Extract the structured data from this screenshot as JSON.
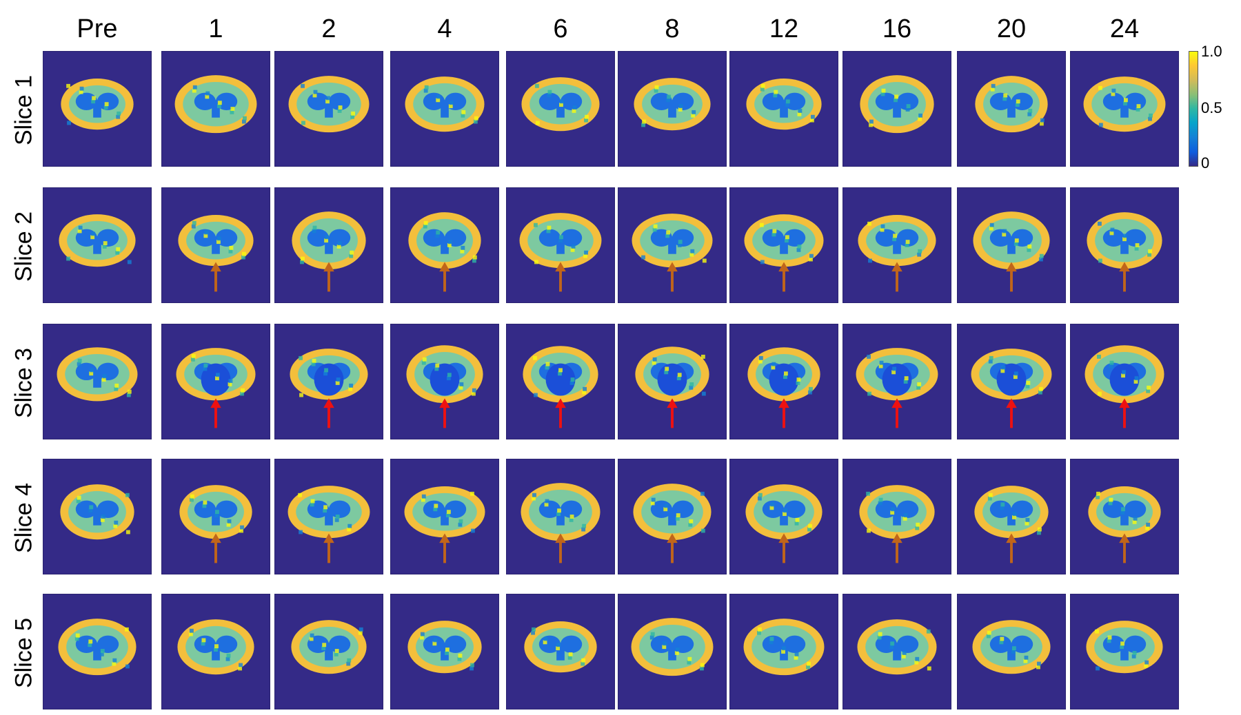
{
  "columns": [
    "Pre",
    "1",
    "2",
    "4",
    "6",
    "8",
    "12",
    "16",
    "20",
    "24"
  ],
  "rows": [
    "Slice 1",
    "Slice 2",
    "Slice 3",
    "Slice 4",
    "Slice 5"
  ],
  "colorbar": {
    "ticks": [
      "1.0",
      "0.5",
      "0"
    ],
    "colormap": [
      "#352a87",
      "#0f5cdd",
      "#1481d6",
      "#06a4ca",
      "#2eb7a4",
      "#87bf77",
      "#d1bb59",
      "#fec832",
      "#f9fb0e"
    ]
  },
  "arrows": {
    "Slice 2": {
      "color": "#c0651a",
      "columns": [
        "1",
        "2",
        "4",
        "6",
        "8",
        "12",
        "16",
        "20",
        "24"
      ]
    },
    "Slice 3": {
      "color": "#ee1111",
      "columns": [
        "1",
        "2",
        "4",
        "6",
        "8",
        "12",
        "16",
        "20",
        "24"
      ]
    },
    "Slice 4": {
      "color": "#c0651a",
      "columns": [
        "1",
        "2",
        "4",
        "6",
        "8",
        "12",
        "16",
        "20",
        "24"
      ]
    }
  },
  "colors": {
    "background": "#342a87",
    "outer_ring": "#f3bf3c",
    "gray_matter": "#7dc9a0",
    "core": "#1e6fe0",
    "deep_core": "#1b4fd8"
  }
}
